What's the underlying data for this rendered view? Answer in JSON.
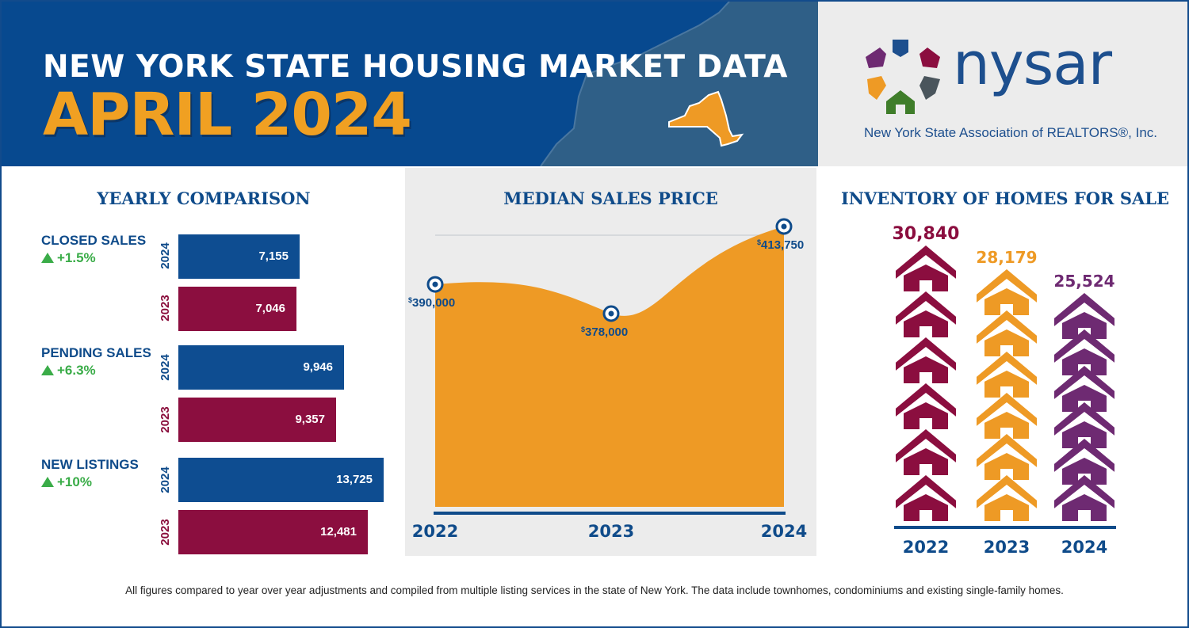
{
  "header": {
    "title": "NEW YORK STATE HOUSING MARKET DATA",
    "subtitle": "APRIL 2024"
  },
  "logo": {
    "wordmark": "nysar",
    "tagline": "New York State Association of REALTORS®, Inc."
  },
  "yearly_comparison": {
    "title": "YEARLY COMPARISON",
    "metrics": [
      {
        "label": "CLOSED SALES",
        "change": "+1.5%",
        "year_a": "2024",
        "value_a": "7,155",
        "year_b": "2023",
        "value_b": "7,046"
      },
      {
        "label": "PENDING SALES",
        "change": "+6.3%",
        "year_a": "2024",
        "value_a": "9,946",
        "year_b": "2023",
        "value_b": "9,357"
      },
      {
        "label": "NEW LISTINGS",
        "change": "+10%",
        "year_a": "2024",
        "value_a": "13,725",
        "year_b": "2023",
        "value_b": "12,481"
      }
    ]
  },
  "median_sales_price": {
    "title": "MEDIAN SALES PRICE",
    "points": [
      {
        "year": "2022",
        "label": "390,000",
        "value": 390000
      },
      {
        "year": "2023",
        "label": "378,000",
        "value": 378000
      },
      {
        "year": "2024",
        "label": "413,750",
        "value": 413750
      }
    ],
    "currency_symbol": "$"
  },
  "inventory": {
    "title": "INVENTORY OF HOMES FOR SALE",
    "columns": [
      {
        "year": "2022",
        "label": "30,840",
        "value": 30840,
        "color": "#8b0e3f"
      },
      {
        "year": "2023",
        "label": "28,179",
        "value": 28179,
        "color": "#ee9a25"
      },
      {
        "year": "2024",
        "label": "25,524",
        "value": 25524,
        "color": "#6e2a72"
      }
    ]
  },
  "colors": {
    "navy": "#07498f",
    "orange": "#ee9a25",
    "maroon": "#8b0e3f",
    "purple": "#6e2a72",
    "green": "#3aac48"
  },
  "footer": {
    "note": "All figures compared to year over year adjustments and compiled from multiple listing services in the state of New York.  The data include townhomes, condominiums and existing single-family homes."
  }
}
